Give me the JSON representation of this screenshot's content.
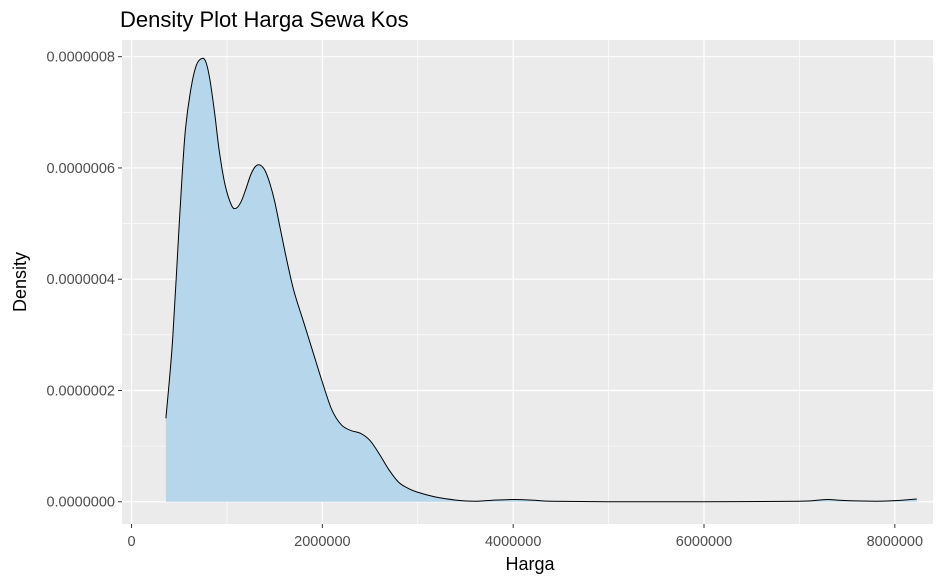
{
  "chart_data": {
    "type": "area",
    "title": "Density Plot Harga Sewa Kos",
    "xlabel": "Harga",
    "ylabel": "Density",
    "xlim": [
      -100000,
      8400000
    ],
    "ylim": [
      -4e-08,
      8.3e-07
    ],
    "x_ticks": [
      {
        "value": 0,
        "label": "0"
      },
      {
        "value": 2000000,
        "label": "2000000"
      },
      {
        "value": 4000000,
        "label": "4000000"
      },
      {
        "value": 6000000,
        "label": "6000000"
      },
      {
        "value": 8000000,
        "label": "8000000"
      }
    ],
    "y_ticks": [
      {
        "value": 0,
        "label": "0.0000000"
      },
      {
        "value": 2e-07,
        "label": "0.0000002"
      },
      {
        "value": 4e-07,
        "label": "0.0000004"
      },
      {
        "value": 6e-07,
        "label": "0.0000006"
      },
      {
        "value": 8e-07,
        "label": "0.0000008"
      }
    ],
    "grid": true,
    "legend": "none",
    "series": [
      {
        "x": [
          360000,
          430000,
          500000,
          560000,
          620000,
          680000,
          740000,
          780000,
          820000,
          870000,
          920000,
          980000,
          1050000,
          1100000,
          1150000,
          1200000,
          1250000,
          1300000,
          1350000,
          1400000,
          1450000,
          1500000,
          1560000,
          1620000,
          1700000,
          1800000,
          1900000,
          2000000,
          2100000,
          2200000,
          2300000,
          2400000,
          2500000,
          2600000,
          2700000,
          2800000,
          2900000,
          3000000,
          3200000,
          3400000,
          3600000,
          3800000,
          4000000,
          4200000,
          4400000,
          5000000,
          6000000,
          7000000,
          7200000,
          7300000,
          7500000,
          7800000,
          8000000,
          8230000
        ],
        "y": [
          1.5e-07,
          2.9e-07,
          5e-07,
          6.6e-07,
          7.4e-07,
          7.85e-07,
          7.97e-07,
          7.9e-07,
          7.6e-07,
          7e-07,
          6.3e-07,
          5.7e-07,
          5.32e-07,
          5.28e-07,
          5.4e-07,
          5.63e-07,
          5.88e-07,
          6.03e-07,
          6.05e-07,
          5.95e-07,
          5.72e-07,
          5.4e-07,
          4.9e-07,
          4.4e-07,
          3.8e-07,
          3.25e-07,
          2.7e-07,
          2.15e-07,
          1.65e-07,
          1.38e-07,
          1.28e-07,
          1.23e-07,
          1.1e-07,
          8.5e-08,
          5.7e-08,
          3.5e-08,
          2.4e-08,
          1.7e-08,
          8e-09,
          3e-09,
          1e-09,
          3e-09,
          4e-09,
          3e-09,
          1e-09,
          0.0,
          0.0,
          1e-09,
          3e-09,
          4e-09,
          2e-09,
          1e-09,
          2e-09,
          5e-09
        ]
      }
    ],
    "colors": {
      "panel": "#ebebeb",
      "grid_major": "#ffffff",
      "fill": "#b6d6eb",
      "line": "#000000",
      "tick_text": "#4d4d4d",
      "tick_mark": "#333333"
    }
  }
}
